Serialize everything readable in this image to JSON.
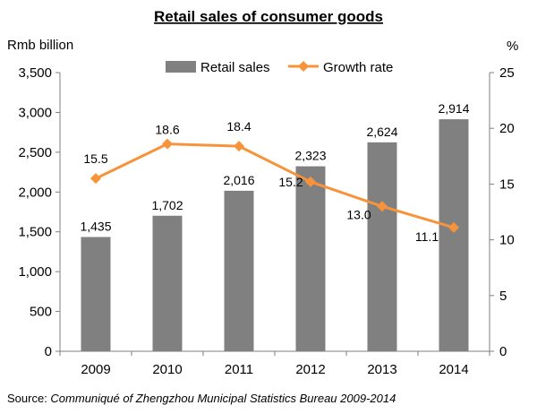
{
  "source": {
    "prefix": "Source: ",
    "text": "Communiqué of Zhengzhou Municipal Statistics Bureau 2009-2014"
  },
  "colors": {
    "bars": "#808080",
    "line": "#f7943b",
    "axis": "#7f7f7f"
  },
  "chart_data": {
    "type": "bar",
    "title": "Retail sales of consumer goods",
    "categories": [
      "2009",
      "2010",
      "2011",
      "2012",
      "2013",
      "2014"
    ],
    "series": [
      {
        "name": "Retail sales",
        "type": "bar",
        "axis": "left",
        "values": [
          1435,
          1702,
          2016,
          2323,
          2624,
          2914
        ],
        "labels": [
          "1,435",
          "1,702",
          "2,016",
          "2,323",
          "2,624",
          "2,914"
        ]
      },
      {
        "name": "Growth rate",
        "type": "line",
        "axis": "right",
        "values": [
          15.5,
          18.6,
          18.4,
          15.2,
          13.0,
          11.1
        ],
        "labels": [
          "15.5",
          "18.6",
          "18.4",
          "15.2",
          "13.0",
          "11.1"
        ]
      }
    ],
    "y_left": {
      "label": "Rmb billion",
      "lim": [
        0,
        3500
      ],
      "ticks": [
        0,
        500,
        1000,
        1500,
        2000,
        2500,
        3000,
        3500
      ],
      "tick_labels": [
        "0",
        "500",
        "1,000",
        "1,500",
        "2,000",
        "2,500",
        "3,000",
        "3,500"
      ]
    },
    "y_right": {
      "label": "%",
      "lim": [
        0,
        25
      ],
      "ticks": [
        0,
        5,
        10,
        15,
        20,
        25
      ],
      "tick_labels": [
        "0",
        "5",
        "10",
        "15",
        "20",
        "25"
      ]
    },
    "grid": false,
    "legend": "top-center"
  }
}
